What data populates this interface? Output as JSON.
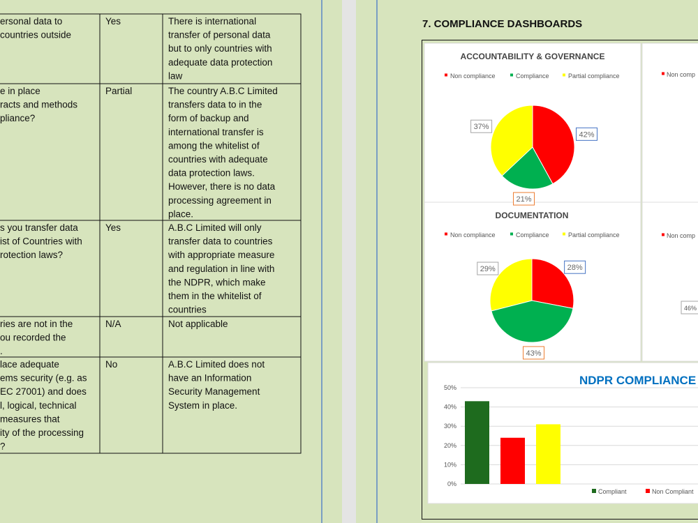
{
  "section_heading": "7. COMPLIANCE DASHBOARDS",
  "table": {
    "rows": [
      [
        [
          "ersonal data to",
          "countries outside"
        ],
        "Yes",
        [
          "There is international",
          "transfer of personal data",
          "but to only countries with",
          "adequate data protection",
          "law"
        ]
      ],
      [
        [
          "e in place",
          "racts and methods",
          "pliance?"
        ],
        "Partial",
        [
          "The country A.B.C Limited",
          "transfers data to in the",
          "form of backup and",
          "international transfer is",
          "among the whitelist of",
          "countries with adequate",
          "data protection laws.",
          "However, there is no data",
          "processing agreement in",
          "place."
        ]
      ],
      [
        [
          "s you transfer data",
          "ist of Countries with",
          "rotection laws?"
        ],
        "Yes",
        [
          "A.B.C Limited will only",
          "transfer data to countries",
          "with appropriate measure",
          "and regulation in line with",
          "the NDPR, which make",
          "them in the whitelist of",
          "countries"
        ]
      ],
      [
        [
          "ries are not in the",
          "ou recorded the",
          "."
        ],
        "N/A",
        [
          "Not applicable"
        ]
      ],
      [
        [
          "lace adequate",
          "ems security (e.g. as",
          "EC 27001) and does",
          "l, logical, technical",
          "measures that",
          "ity of the processing",
          "?"
        ],
        "No",
        [
          "A.B.C Limited does not",
          "have an Information",
          "Security Management",
          "System in place."
        ]
      ]
    ]
  },
  "partial_panels": [
    {
      "legend": "Non comp"
    },
    {
      "legend": "Non comp",
      "value_label": "46%"
    }
  ],
  "chart_data": [
    {
      "type": "pie",
      "title": "ACCOUNTABILITY & GOVERNANCE",
      "categories": [
        "Non compliance",
        "Compliance",
        "Partial compliance"
      ],
      "values": [
        42,
        21,
        37
      ],
      "value_labels": [
        "42%",
        "21%",
        "37%"
      ],
      "colors": [
        "#ff0000",
        "#00b050",
        "#ffff00"
      ],
      "label_border_colors": [
        "#4472c4",
        "#ed7d31",
        "#a5a5a5"
      ]
    },
    {
      "type": "pie",
      "title": "DOCUMENTATION",
      "categories": [
        "Non compliance",
        "Compliance",
        "Partial compliance"
      ],
      "values": [
        28,
        43,
        29
      ],
      "value_labels": [
        "28%",
        "43%",
        "29%"
      ],
      "colors": [
        "#ff0000",
        "#00b050",
        "#ffff00"
      ],
      "label_border_colors": [
        "#4472c4",
        "#ed7d31",
        "#a5a5a5"
      ]
    },
    {
      "type": "bar",
      "title": "NDPR COMPLIANCE LEVEL",
      "ylim": [
        0,
        50
      ],
      "yticks": [
        {
          "value": 0,
          "label": "0%"
        },
        {
          "value": 10,
          "label": "10%"
        },
        {
          "value": 20,
          "label": "20%"
        },
        {
          "value": 30,
          "label": "30%"
        },
        {
          "value": 40,
          "label": "40%"
        },
        {
          "value": 50,
          "label": "50%"
        }
      ],
      "grid": true,
      "series": [
        {
          "name": "Compliant",
          "color": "#1e6b1e",
          "values": [
            43
          ]
        },
        {
          "name": "Non Compliant",
          "color": "#ff0000",
          "values": [
            24
          ]
        },
        {
          "color": "#ffff00",
          "values": [
            31
          ]
        }
      ]
    }
  ]
}
